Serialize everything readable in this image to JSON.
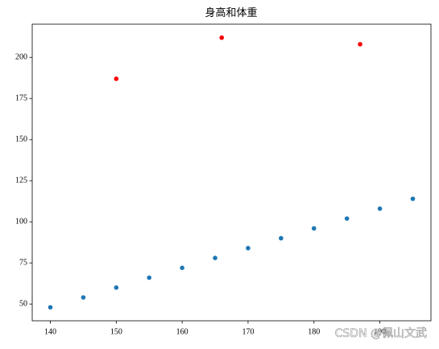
{
  "chart_data": {
    "type": "scatter",
    "title": "身高和体重",
    "series": [
      {
        "color": "#1f77b4",
        "x": [
          140,
          145,
          150,
          155,
          160,
          165,
          170,
          175,
          180,
          185,
          190,
          195
        ],
        "values": [
          48,
          54,
          60,
          66,
          72,
          78,
          84,
          90,
          96,
          102,
          108,
          114
        ]
      },
      {
        "color": "#ff0000",
        "x": [
          150,
          166,
          187
        ],
        "values": [
          187,
          212,
          208
        ]
      }
    ],
    "xlim": [
      137.25,
      197.75
    ],
    "ylim": [
      39.8,
      220.2
    ],
    "xticks": [
      140,
      150,
      160,
      170,
      180,
      190
    ],
    "yticks": [
      50,
      75,
      100,
      125,
      150,
      175,
      200
    ],
    "grid": false,
    "watermark": "CSDN @佩山文武"
  }
}
